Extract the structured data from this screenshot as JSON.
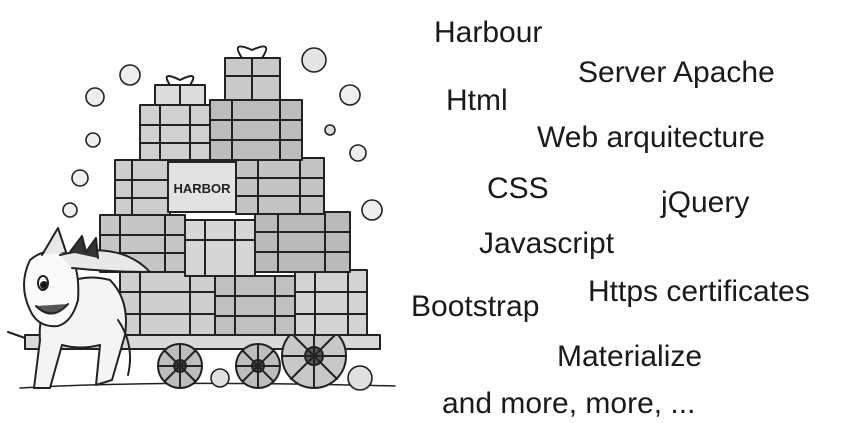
{
  "illustration": {
    "box_label": "HARBOR"
  },
  "words": {
    "harbour": "Harbour",
    "server_apache": "Server Apache",
    "html": "Html",
    "web_architecture": "Web arquitecture",
    "css": "CSS",
    "jquery": "jQuery",
    "javascript": "Javascript",
    "https_certificates": "Https certificates",
    "bootstrap": "Bootstrap",
    "materialize": "Materialize",
    "and_more": "and more, more, ..."
  }
}
